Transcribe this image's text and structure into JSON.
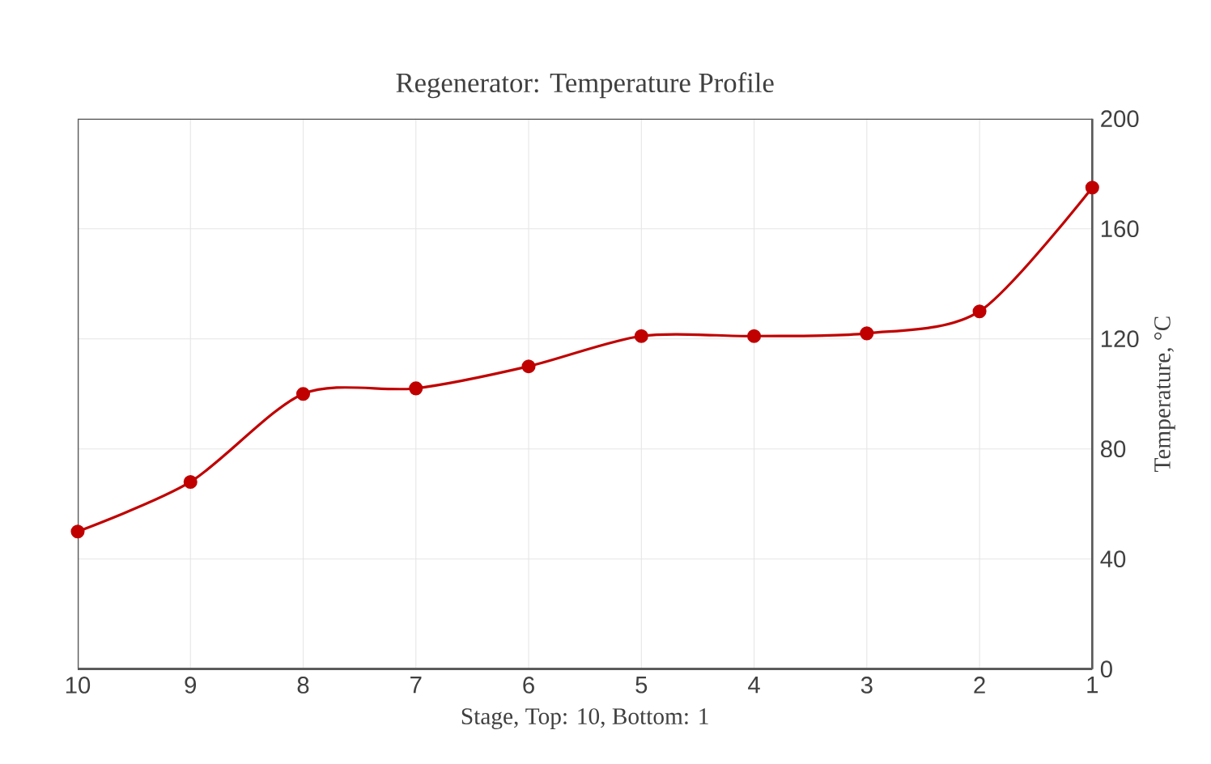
{
  "chart_data": {
    "type": "line",
    "title": "Regenerator: Temperature Profile",
    "xlabel": "Stage, Top: 10, Bottom: 1",
    "ylabel": "Temperature, °C",
    "x": [
      10,
      9,
      8,
      7,
      6,
      5,
      4,
      3,
      2,
      1
    ],
    "series": [
      {
        "color": "#c00000",
        "values": [
          50,
          68,
          100,
          102,
          110,
          121,
          121,
          122,
          130,
          175
        ]
      }
    ],
    "xlim": [
      10,
      1
    ],
    "xticks": [
      10,
      9,
      8,
      7,
      6,
      5,
      4,
      3,
      2,
      1
    ],
    "ylim": [
      0,
      200
    ],
    "yticks": [
      0,
      40,
      80,
      120,
      160,
      200
    ],
    "grid": true,
    "marker": "circle",
    "line_style": "solid"
  }
}
